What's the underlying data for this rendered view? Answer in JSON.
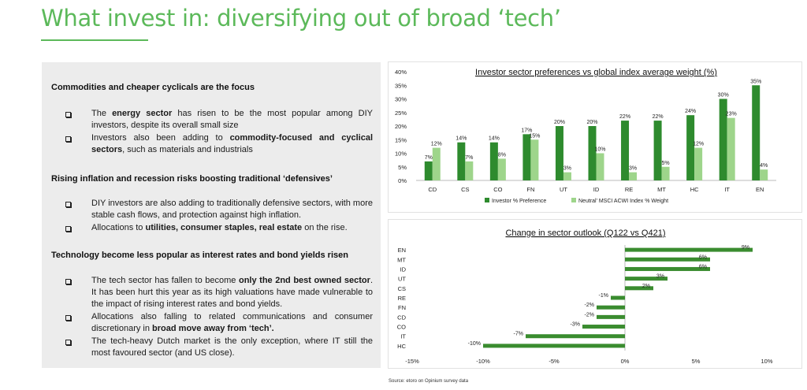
{
  "title": "What invest in: diversifying out of broad ‘tech’",
  "sections": [
    {
      "heading": "Commodities and cheaper cyclicals are the focus",
      "bullets": [
        [
          {
            "t": "The "
          },
          {
            "t": "energy sector",
            "b": true
          },
          {
            "t": " has risen to be the most popular among DIY investors, despite its overall small size"
          }
        ],
        [
          {
            "t": "Investors also been adding to "
          },
          {
            "t": "commodity-focused and cyclical sectors",
            "b": true
          },
          {
            "t": ", such as materials and industrials"
          }
        ]
      ]
    },
    {
      "heading": "Rising inflation and recession risks boosting traditional ‘defensives’",
      "bullets": [
        [
          {
            "t": "DIY investors are also adding to traditionally defensive sectors, with more stable cash flows, and protection against high inflation."
          }
        ],
        [
          {
            "t": "Allocations to "
          },
          {
            "t": "utilities, consumer staples, real estate",
            "b": true
          },
          {
            "t": " on the rise."
          }
        ]
      ]
    },
    {
      "heading": "Technology become less popular as interest rates and bond yields risen",
      "bullets": [
        [
          {
            "t": "The tech sector has fallen to become "
          },
          {
            "t": "only the 2nd best owned sector",
            "b": true
          },
          {
            "t": ". It has been hurt this year as its high valuations have made vulnerable to the impact of rising interest rates and bond yields."
          }
        ],
        [
          {
            "t": "Allocations also falling to related communications and consumer discretionary in "
          },
          {
            "t": "broad move away from ‘tech’.",
            "b": true
          }
        ],
        [
          {
            "t": "The tech-heavy Dutch market is the only exception, where IT still the most favoured sector (and US close)."
          }
        ]
      ]
    }
  ],
  "source": "Source: etoro on Opinium survey data",
  "colors": {
    "title": "#5cb95a",
    "dark_green": "#2e8b2e",
    "light_green": "#9ed58b",
    "bar_green": "#3a8c2f"
  },
  "chart_data": [
    {
      "type": "bar",
      "title": "Investor sector preferences vs global index average weight (%)",
      "categories": [
        "CD",
        "CS",
        "CO",
        "FN",
        "UT",
        "ID",
        "RE",
        "MT",
        "HC",
        "IT",
        "EN"
      ],
      "series": [
        {
          "name": "Investor % Preference",
          "values": [
            7,
            14,
            14,
            17,
            20,
            20,
            22,
            22,
            24,
            30,
            35
          ],
          "labels": [
            "7%",
            "14%",
            "14%",
            "17%",
            "20%",
            "20%",
            "22%",
            "22%",
            "24%",
            "30%",
            "35%"
          ],
          "color": "#2e8b2e"
        },
        {
          "name": "Neutral' MSCI ACWI Index % Weight",
          "values": [
            12,
            7,
            8,
            15,
            3,
            10,
            3,
            5,
            12,
            23,
            4
          ],
          "labels": [
            "12%",
            "7%",
            "8%",
            "15%",
            "3%",
            "10%",
            "3%",
            "5%",
            "12%",
            "23%",
            "4%"
          ],
          "color": "#9ed58b"
        }
      ],
      "yticks": [
        "0%",
        "5%",
        "10%",
        "15%",
        "20%",
        "25%",
        "30%",
        "35%",
        "40%"
      ],
      "ylim": [
        0,
        40
      ],
      "legend": "bottom"
    },
    {
      "type": "bar",
      "orientation": "horizontal",
      "title": "Change in sector outlook (Q122 vs Q421)",
      "categories": [
        "EN",
        "MT",
        "ID",
        "UT",
        "CS",
        "RE",
        "FN",
        "CD",
        "CO",
        "IT",
        "HC"
      ],
      "values": [
        9,
        6,
        6,
        3,
        2,
        -1,
        -2,
        -2,
        -3,
        -7,
        -10
      ],
      "labels": [
        "9%",
        "6%",
        "6%",
        "3%",
        "2%",
        "-1%",
        "-2%",
        "-2%",
        "-3%",
        "-7%",
        "-10%"
      ],
      "xticks": [
        "-15%",
        "-10%",
        "-5%",
        "0%",
        "5%",
        "10%"
      ],
      "xlim": [
        -15,
        10
      ],
      "color": "#3a8c2f"
    }
  ]
}
